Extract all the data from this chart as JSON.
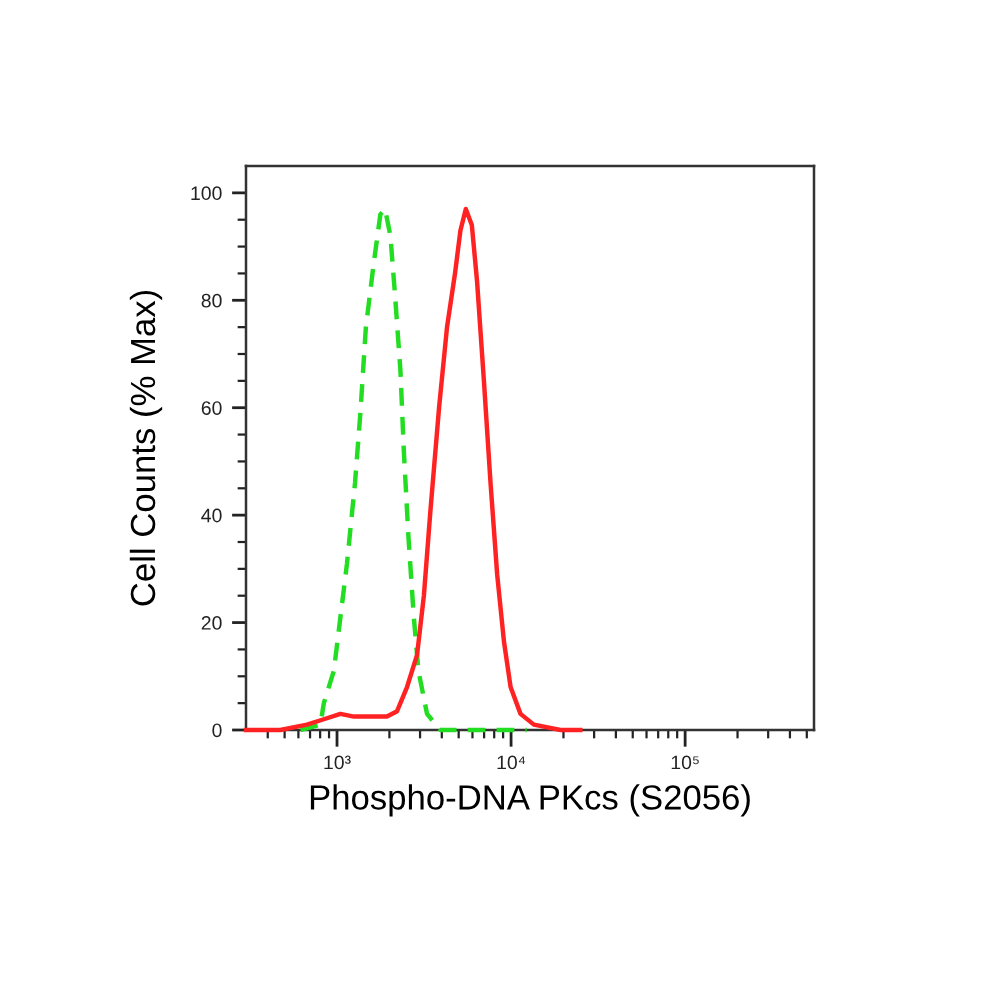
{
  "chart_data": {
    "type": "line",
    "xlabel": "Phospho-DNA PKcs (S2056)",
    "ylabel": "Cell Counts (% Max)",
    "log": "x",
    "xlim": [
      300,
      550000
    ],
    "xticks": [
      {
        "value": 400,
        "label": null
      },
      {
        "value": 500,
        "label": null
      },
      {
        "value": 600,
        "label": null
      },
      {
        "value": 700,
        "label": null
      },
      {
        "value": 800,
        "label": null
      },
      {
        "value": 900,
        "label": null
      },
      {
        "value": 1000,
        "label": "10³"
      },
      {
        "value": 2000,
        "label": null
      },
      {
        "value": 3000,
        "label": null
      },
      {
        "value": 4000,
        "label": null
      },
      {
        "value": 5000,
        "label": null
      },
      {
        "value": 6000,
        "label": null
      },
      {
        "value": 7000,
        "label": null
      },
      {
        "value": 8000,
        "label": null
      },
      {
        "value": 9000,
        "label": null
      },
      {
        "value": 10000,
        "label": "10⁴"
      },
      {
        "value": 20000,
        "label": null
      },
      {
        "value": 30000,
        "label": null
      },
      {
        "value": 40000,
        "label": null
      },
      {
        "value": 50000,
        "label": null
      },
      {
        "value": 60000,
        "label": null
      },
      {
        "value": 70000,
        "label": null
      },
      {
        "value": 80000,
        "label": null
      },
      {
        "value": 90000,
        "label": null
      },
      {
        "value": 100000,
        "label": "10⁵"
      },
      {
        "value": 200000,
        "label": null
      },
      {
        "value": 300000,
        "label": null
      },
      {
        "value": 400000,
        "label": null
      },
      {
        "value": 500000,
        "label": null
      }
    ],
    "ylim": [
      0,
      105
    ],
    "yticks": [
      0,
      {
        "value": 5,
        "label": null
      },
      {
        "value": 10,
        "label": null
      },
      {
        "value": 15,
        "label": null
      },
      20,
      {
        "value": 25,
        "label": null
      },
      {
        "value": 30,
        "label": null
      },
      {
        "value": 35,
        "label": null
      },
      40,
      {
        "value": 45,
        "label": null
      },
      {
        "value": 50,
        "label": null
      },
      {
        "value": 55,
        "label": null
      },
      60,
      {
        "value": 65,
        "label": null
      },
      {
        "value": 70,
        "label": null
      },
      {
        "value": 75,
        "label": null
      },
      80,
      {
        "value": 85,
        "label": null
      },
      {
        "value": 90,
        "label": null
      },
      {
        "value": 95,
        "label": null
      },
      100
    ],
    "series": [
      {
        "color": "#22dd22",
        "line_style": "dashed",
        "x": [
          617,
          803,
          840,
          959,
          1141,
          1269,
          1362,
          1465,
          1627,
          1775,
          1887,
          2027,
          2154,
          2313,
          2420,
          2572,
          2762,
          2936,
          3289,
          3926,
          12300
        ],
        "values": [
          0,
          1,
          5,
          11,
          31,
          46,
          59,
          75,
          87,
          96,
          97,
          92,
          81,
          67,
          52,
          36,
          21,
          11,
          3,
          0,
          0
        ]
      },
      {
        "color": "#ff2222",
        "line_style": "solid",
        "x": [
          300,
          473,
          672,
          840,
          1046,
          1250,
          1936,
          2213,
          2525,
          2884,
          3155,
          3444,
          3857,
          4286,
          4764,
          5117,
          5495,
          5951,
          6378,
          6982,
          7620,
          8318,
          9099,
          9935,
          11330,
          13520,
          19230,
          25000
        ],
        "values": [
          0,
          0,
          1,
          2,
          3,
          2.5,
          2.5,
          3.5,
          8,
          14,
          25,
          41,
          60,
          75,
          85,
          93,
          97,
          94,
          83.5,
          65,
          46,
          29,
          16.5,
          8,
          3,
          1,
          0,
          0
        ]
      }
    ]
  }
}
